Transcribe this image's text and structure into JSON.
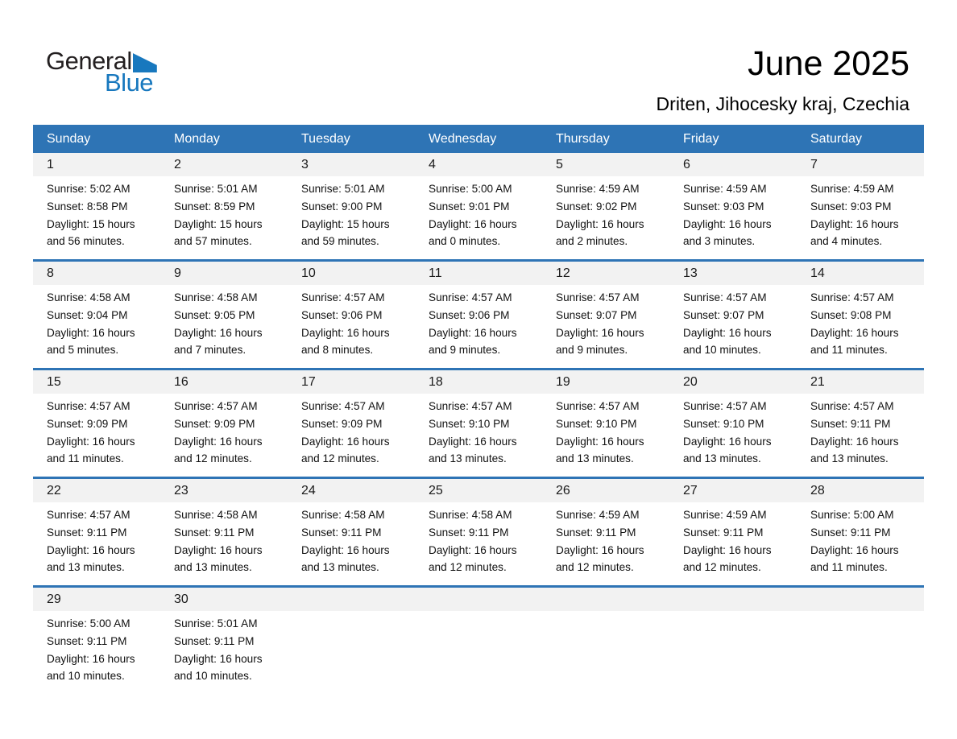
{
  "logo": {
    "general": "General",
    "blue": "Blue"
  },
  "title": {
    "month": "June 2025",
    "location": "Driten, Jihocesky kraj, Czechia"
  },
  "colors": {
    "header_blue": "#2E74B5",
    "day_band_gray": "#F2F2F2",
    "logo_blue": "#1878BE"
  },
  "weekday_names": [
    "Sunday",
    "Monday",
    "Tuesday",
    "Wednesday",
    "Thursday",
    "Friday",
    "Saturday"
  ],
  "weeks": [
    [
      {
        "day": "1",
        "sunrise": "Sunrise: 5:02 AM",
        "sunset": "Sunset: 8:58 PM",
        "daylight1": "Daylight: 15 hours",
        "daylight2": "and 56 minutes."
      },
      {
        "day": "2",
        "sunrise": "Sunrise: 5:01 AM",
        "sunset": "Sunset: 8:59 PM",
        "daylight1": "Daylight: 15 hours",
        "daylight2": "and 57 minutes."
      },
      {
        "day": "3",
        "sunrise": "Sunrise: 5:01 AM",
        "sunset": "Sunset: 9:00 PM",
        "daylight1": "Daylight: 15 hours",
        "daylight2": "and 59 minutes."
      },
      {
        "day": "4",
        "sunrise": "Sunrise: 5:00 AM",
        "sunset": "Sunset: 9:01 PM",
        "daylight1": "Daylight: 16 hours",
        "daylight2": "and 0 minutes."
      },
      {
        "day": "5",
        "sunrise": "Sunrise: 4:59 AM",
        "sunset": "Sunset: 9:02 PM",
        "daylight1": "Daylight: 16 hours",
        "daylight2": "and 2 minutes."
      },
      {
        "day": "6",
        "sunrise": "Sunrise: 4:59 AM",
        "sunset": "Sunset: 9:03 PM",
        "daylight1": "Daylight: 16 hours",
        "daylight2": "and 3 minutes."
      },
      {
        "day": "7",
        "sunrise": "Sunrise: 4:59 AM",
        "sunset": "Sunset: 9:03 PM",
        "daylight1": "Daylight: 16 hours",
        "daylight2": "and 4 minutes."
      }
    ],
    [
      {
        "day": "8",
        "sunrise": "Sunrise: 4:58 AM",
        "sunset": "Sunset: 9:04 PM",
        "daylight1": "Daylight: 16 hours",
        "daylight2": "and 5 minutes."
      },
      {
        "day": "9",
        "sunrise": "Sunrise: 4:58 AM",
        "sunset": "Sunset: 9:05 PM",
        "daylight1": "Daylight: 16 hours",
        "daylight2": "and 7 minutes."
      },
      {
        "day": "10",
        "sunrise": "Sunrise: 4:57 AM",
        "sunset": "Sunset: 9:06 PM",
        "daylight1": "Daylight: 16 hours",
        "daylight2": "and 8 minutes."
      },
      {
        "day": "11",
        "sunrise": "Sunrise: 4:57 AM",
        "sunset": "Sunset: 9:06 PM",
        "daylight1": "Daylight: 16 hours",
        "daylight2": "and 9 minutes."
      },
      {
        "day": "12",
        "sunrise": "Sunrise: 4:57 AM",
        "sunset": "Sunset: 9:07 PM",
        "daylight1": "Daylight: 16 hours",
        "daylight2": "and 9 minutes."
      },
      {
        "day": "13",
        "sunrise": "Sunrise: 4:57 AM",
        "sunset": "Sunset: 9:07 PM",
        "daylight1": "Daylight: 16 hours",
        "daylight2": "and 10 minutes."
      },
      {
        "day": "14",
        "sunrise": "Sunrise: 4:57 AM",
        "sunset": "Sunset: 9:08 PM",
        "daylight1": "Daylight: 16 hours",
        "daylight2": "and 11 minutes."
      }
    ],
    [
      {
        "day": "15",
        "sunrise": "Sunrise: 4:57 AM",
        "sunset": "Sunset: 9:09 PM",
        "daylight1": "Daylight: 16 hours",
        "daylight2": "and 11 minutes."
      },
      {
        "day": "16",
        "sunrise": "Sunrise: 4:57 AM",
        "sunset": "Sunset: 9:09 PM",
        "daylight1": "Daylight: 16 hours",
        "daylight2": "and 12 minutes."
      },
      {
        "day": "17",
        "sunrise": "Sunrise: 4:57 AM",
        "sunset": "Sunset: 9:09 PM",
        "daylight1": "Daylight: 16 hours",
        "daylight2": "and 12 minutes."
      },
      {
        "day": "18",
        "sunrise": "Sunrise: 4:57 AM",
        "sunset": "Sunset: 9:10 PM",
        "daylight1": "Daylight: 16 hours",
        "daylight2": "and 13 minutes."
      },
      {
        "day": "19",
        "sunrise": "Sunrise: 4:57 AM",
        "sunset": "Sunset: 9:10 PM",
        "daylight1": "Daylight: 16 hours",
        "daylight2": "and 13 minutes."
      },
      {
        "day": "20",
        "sunrise": "Sunrise: 4:57 AM",
        "sunset": "Sunset: 9:10 PM",
        "daylight1": "Daylight: 16 hours",
        "daylight2": "and 13 minutes."
      },
      {
        "day": "21",
        "sunrise": "Sunrise: 4:57 AM",
        "sunset": "Sunset: 9:11 PM",
        "daylight1": "Daylight: 16 hours",
        "daylight2": "and 13 minutes."
      }
    ],
    [
      {
        "day": "22",
        "sunrise": "Sunrise: 4:57 AM",
        "sunset": "Sunset: 9:11 PM",
        "daylight1": "Daylight: 16 hours",
        "daylight2": "and 13 minutes."
      },
      {
        "day": "23",
        "sunrise": "Sunrise: 4:58 AM",
        "sunset": "Sunset: 9:11 PM",
        "daylight1": "Daylight: 16 hours",
        "daylight2": "and 13 minutes."
      },
      {
        "day": "24",
        "sunrise": "Sunrise: 4:58 AM",
        "sunset": "Sunset: 9:11 PM",
        "daylight1": "Daylight: 16 hours",
        "daylight2": "and 13 minutes."
      },
      {
        "day": "25",
        "sunrise": "Sunrise: 4:58 AM",
        "sunset": "Sunset: 9:11 PM",
        "daylight1": "Daylight: 16 hours",
        "daylight2": "and 12 minutes."
      },
      {
        "day": "26",
        "sunrise": "Sunrise: 4:59 AM",
        "sunset": "Sunset: 9:11 PM",
        "daylight1": "Daylight: 16 hours",
        "daylight2": "and 12 minutes."
      },
      {
        "day": "27",
        "sunrise": "Sunrise: 4:59 AM",
        "sunset": "Sunset: 9:11 PM",
        "daylight1": "Daylight: 16 hours",
        "daylight2": "and 12 minutes."
      },
      {
        "day": "28",
        "sunrise": "Sunrise: 5:00 AM",
        "sunset": "Sunset: 9:11 PM",
        "daylight1": "Daylight: 16 hours",
        "daylight2": "and 11 minutes."
      }
    ],
    [
      {
        "day": "29",
        "sunrise": "Sunrise: 5:00 AM",
        "sunset": "Sunset: 9:11 PM",
        "daylight1": "Daylight: 16 hours",
        "daylight2": "and 10 minutes."
      },
      {
        "day": "30",
        "sunrise": "Sunrise: 5:01 AM",
        "sunset": "Sunset: 9:11 PM",
        "daylight1": "Daylight: 16 hours",
        "daylight2": "and 10 minutes."
      },
      null,
      null,
      null,
      null,
      null
    ]
  ]
}
